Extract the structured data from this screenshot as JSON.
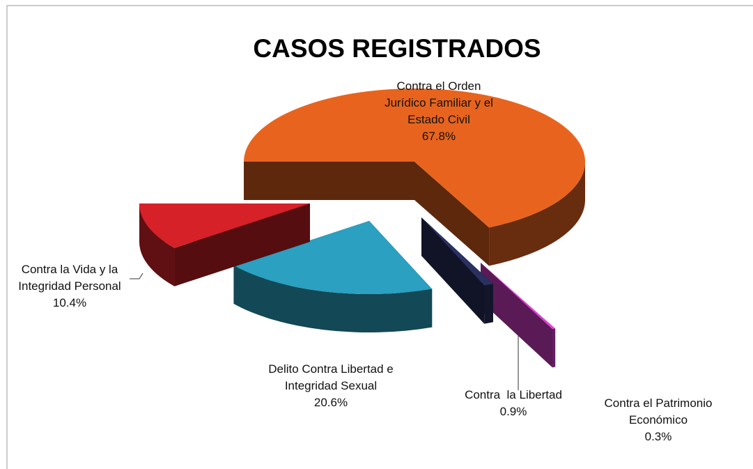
{
  "chart_data": {
    "type": "pie3d",
    "title": "CASOS REGISTRADOS",
    "categories": [
      "Contra el Orden Jurídico Familiar y el Estado Civil",
      "Contra el Patrimonio Económico",
      "Contra  la Libertad",
      "Delito Contra Libertad e Integridad Sexual",
      "Contra la Vida y la Integridad Personal"
    ],
    "values": [
      67.8,
      0.3,
      0.9,
      20.6,
      10.4
    ],
    "value_labels": [
      "67.8%",
      "0.3%",
      "0.9%",
      "20.6%",
      "10.4%"
    ],
    "colors": [
      "#e8641e",
      "#e040d8",
      "#2a3060",
      "#2ba0c0",
      "#d62128"
    ]
  }
}
